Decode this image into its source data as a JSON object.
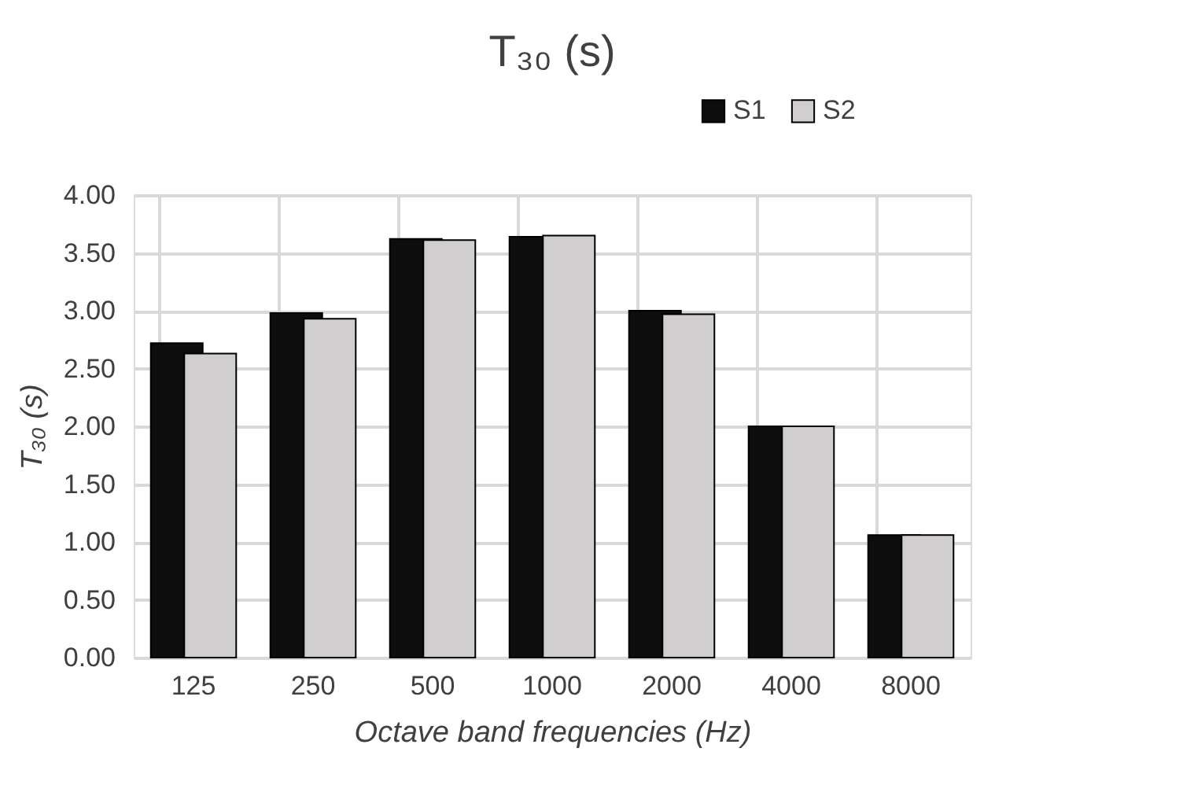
{
  "chart_data": {
    "type": "bar",
    "title": "T₃₀ (s)",
    "xlabel": "Octave band frequencies (Hz)",
    "ylabel": "T₃₀ (s)",
    "categories": [
      "125",
      "250",
      "500",
      "1000",
      "2000",
      "4000",
      "8000"
    ],
    "series": [
      {
        "name": "S1",
        "color": "#0d0d0d",
        "values": [
          2.72,
          2.98,
          3.62,
          3.64,
          3.0,
          2.0,
          1.06
        ]
      },
      {
        "name": "S2",
        "color": "#d0cece",
        "values": [
          2.63,
          2.93,
          3.61,
          3.65,
          2.97,
          2.0,
          1.06
        ]
      }
    ],
    "ylim": [
      0,
      4
    ],
    "yticks": [
      {
        "value": 0,
        "label": "0.00"
      },
      {
        "value": 0.5,
        "label": "0.50"
      },
      {
        "value": 1,
        "label": "1.00"
      },
      {
        "value": 1.5,
        "label": "1.50"
      },
      {
        "value": 2,
        "label": "2.00"
      },
      {
        "value": 2.5,
        "label": "2.50"
      },
      {
        "value": 3,
        "label": "3.00"
      },
      {
        "value": 3.5,
        "label": "3.50"
      },
      {
        "value": 4,
        "label": "4.00"
      }
    ],
    "grid": true,
    "legend": "top right"
  }
}
